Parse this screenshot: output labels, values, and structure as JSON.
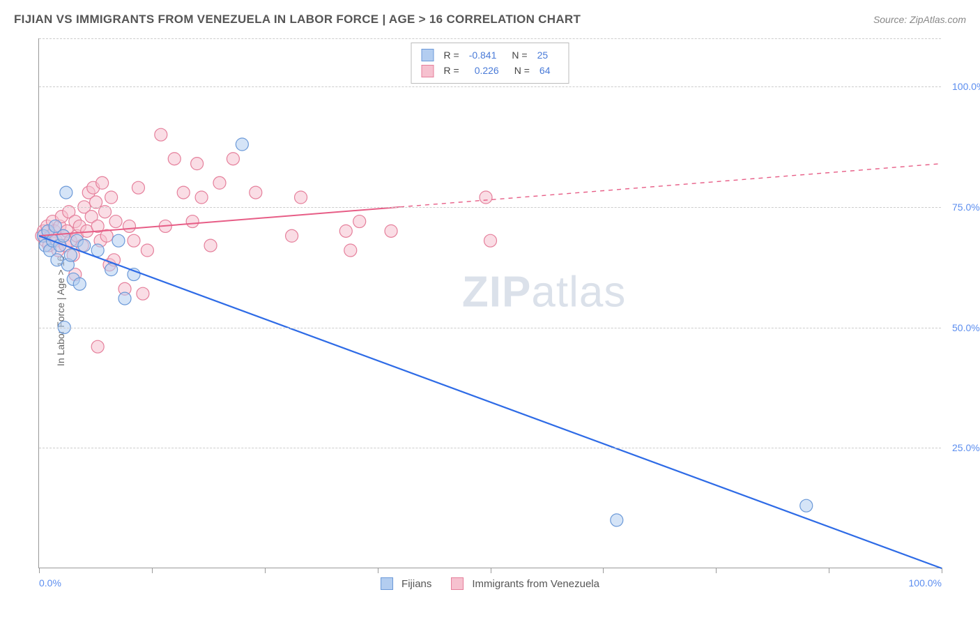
{
  "title": "FIJIAN VS IMMIGRANTS FROM VENEZUELA IN LABOR FORCE | AGE > 16 CORRELATION CHART",
  "source": "Source: ZipAtlas.com",
  "ylabel": "In Labor Force | Age > 16",
  "watermark_bold": "ZIP",
  "watermark_light": "atlas",
  "chart": {
    "type": "scatter",
    "background_color": "#ffffff",
    "grid_color": "#cccccc",
    "axis_color": "#999999",
    "text_color": "#666666",
    "tick_label_color": "#5b8def",
    "xlim": [
      0,
      100
    ],
    "ylim": [
      0,
      110
    ],
    "xticks": [
      0,
      12.5,
      25,
      37.5,
      50,
      62.5,
      75,
      87.5,
      100
    ],
    "xtick_labels_shown": {
      "0": "0.0%",
      "100": "100.0%"
    },
    "yticks": [
      25,
      50,
      75,
      100,
      110
    ],
    "ytick_labels": {
      "25": "25.0%",
      "50": "50.0%",
      "75": "75.0%",
      "100": "100.0%"
    },
    "marker_radius": 9,
    "marker_stroke_width": 1.2,
    "series": [
      {
        "name": "Fijians",
        "fill": "#b3cdf0",
        "stroke": "#6b99d8",
        "fill_opacity": 0.55,
        "correlation_R": "-0.841",
        "correlation_N": "25",
        "regression": {
          "x1": 0,
          "y1": 69,
          "x2": 100,
          "y2": 0,
          "solid_until_x": 100,
          "stroke": "#2e6be6",
          "width": 2.2
        },
        "points": [
          [
            0.5,
            69
          ],
          [
            0.7,
            67
          ],
          [
            1.0,
            70
          ],
          [
            1.2,
            66
          ],
          [
            1.5,
            68
          ],
          [
            1.8,
            71
          ],
          [
            2.0,
            64
          ],
          [
            2.3,
            67
          ],
          [
            2.7,
            69
          ],
          [
            3.0,
            78
          ],
          [
            3.2,
            63
          ],
          [
            3.5,
            65
          ],
          [
            3.8,
            60
          ],
          [
            4.2,
            68
          ],
          [
            4.5,
            59
          ],
          [
            5.0,
            67
          ],
          [
            2.8,
            50
          ],
          [
            6.5,
            66
          ],
          [
            8.0,
            62
          ],
          [
            8.8,
            68
          ],
          [
            9.5,
            56
          ],
          [
            10.5,
            61
          ],
          [
            22.5,
            88
          ],
          [
            64,
            10
          ],
          [
            85,
            13
          ]
        ]
      },
      {
        "name": "Immigrants from Venezuela",
        "fill": "#f6c1cf",
        "stroke": "#e57f9b",
        "fill_opacity": 0.55,
        "correlation_R": "0.226",
        "correlation_N": "64",
        "regression": {
          "x1": 0,
          "y1": 69,
          "x2": 100,
          "y2": 84,
          "solid_until_x": 40,
          "stroke": "#e75d86",
          "width": 2.0
        },
        "points": [
          [
            0.3,
            69
          ],
          [
            0.5,
            70
          ],
          [
            0.7,
            68
          ],
          [
            0.9,
            71
          ],
          [
            1.1,
            67
          ],
          [
            1.3,
            69
          ],
          [
            1.5,
            72
          ],
          [
            1.7,
            70
          ],
          [
            1.9,
            68
          ],
          [
            2.1,
            66
          ],
          [
            2.3,
            71
          ],
          [
            2.5,
            73
          ],
          [
            2.7,
            69
          ],
          [
            2.9,
            67
          ],
          [
            3.1,
            70
          ],
          [
            3.3,
            74
          ],
          [
            3.5,
            68
          ],
          [
            3.8,
            65
          ],
          [
            4.0,
            72
          ],
          [
            4.2,
            69
          ],
          [
            4.5,
            71
          ],
          [
            4.8,
            67
          ],
          [
            5.0,
            75
          ],
          [
            5.3,
            70
          ],
          [
            5.5,
            78
          ],
          [
            5.8,
            73
          ],
          [
            6.0,
            79
          ],
          [
            6.3,
            76
          ],
          [
            6.5,
            71
          ],
          [
            6.8,
            68
          ],
          [
            7.0,
            80
          ],
          [
            7.3,
            74
          ],
          [
            7.5,
            69
          ],
          [
            7.8,
            63
          ],
          [
            8.0,
            77
          ],
          [
            8.3,
            64
          ],
          [
            8.5,
            72
          ],
          [
            4.0,
            61
          ],
          [
            9.5,
            58
          ],
          [
            10.0,
            71
          ],
          [
            10.5,
            68
          ],
          [
            11.0,
            79
          ],
          [
            11.5,
            57
          ],
          [
            12.0,
            66
          ],
          [
            6.5,
            46
          ],
          [
            13.5,
            90
          ],
          [
            14.0,
            71
          ],
          [
            15.0,
            85
          ],
          [
            16.0,
            78
          ],
          [
            17.0,
            72
          ],
          [
            17.5,
            84
          ],
          [
            18.0,
            77
          ],
          [
            19.0,
            67
          ],
          [
            20.0,
            80
          ],
          [
            21.5,
            85
          ],
          [
            24.0,
            78
          ],
          [
            28.0,
            69
          ],
          [
            29.0,
            77
          ],
          [
            34.0,
            70
          ],
          [
            34.5,
            66
          ],
          [
            35.5,
            72
          ],
          [
            39.0,
            70
          ],
          [
            49.5,
            77
          ],
          [
            50.0,
            68
          ]
        ]
      }
    ],
    "legend_bottom": [
      {
        "label": "Fijians",
        "fill": "#b3cdf0",
        "stroke": "#6b99d8"
      },
      {
        "label": "Immigrants from Venezuela",
        "fill": "#f6c1cf",
        "stroke": "#e57f9b"
      }
    ]
  }
}
